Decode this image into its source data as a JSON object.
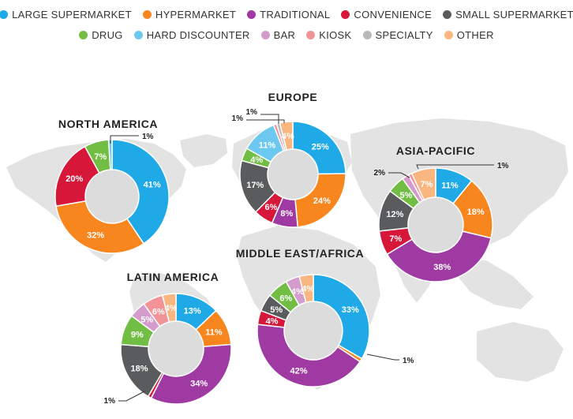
{
  "legend": [
    {
      "label": "LARGE SUPERMARKET",
      "color": "#1fa9e6"
    },
    {
      "label": "HYPERMARKET",
      "color": "#f7861f"
    },
    {
      "label": "TRADITIONAL",
      "color": "#a03aa3"
    },
    {
      "label": "CONVENIENCE",
      "color": "#d7173a"
    },
    {
      "label": "SMALL SUPERMARKET",
      "color": "#5a5b5d"
    },
    {
      "label": "DRUG",
      "color": "#72bd43"
    },
    {
      "label": "HARD DISCOUNTER",
      "color": "#6cc8ef"
    },
    {
      "label": "BAR",
      "color": "#d49ccc"
    },
    {
      "label": "KIOSK",
      "color": "#f29398"
    },
    {
      "label": "SPECIALTY",
      "color": "#b9b9b9"
    },
    {
      "label": "OTHER",
      "color": "#f9b680"
    }
  ],
  "chart_data": [
    {
      "type": "pie",
      "title": "NORTH AMERICA",
      "categories": [
        "LARGE SUPERMARKET",
        "HYPERMARKET",
        "CONVENIENCE",
        "DRUG",
        "HARD DISCOUNTER"
      ],
      "values": [
        41,
        32,
        20,
        7,
        1
      ],
      "labels": [
        "41%",
        "32%",
        "20%",
        "7%",
        "1%"
      ]
    },
    {
      "type": "pie",
      "title": "EUROPE",
      "categories": [
        "LARGE SUPERMARKET",
        "HYPERMARKET",
        "TRADITIONAL",
        "CONVENIENCE",
        "SMALL SUPERMARKET",
        "DRUG",
        "HARD DISCOUNTER",
        "KIOSK",
        "SPECIALTY",
        "OTHER"
      ],
      "values": [
        25,
        24,
        8,
        6,
        17,
        4,
        11,
        1,
        1,
        4
      ],
      "labels": [
        "25%",
        "24%",
        "8%",
        "6%",
        "17%",
        "4%",
        "11%",
        "1%",
        "1%",
        "4%"
      ]
    },
    {
      "type": "pie",
      "title": "ASIA-PACIFIC",
      "categories": [
        "LARGE SUPERMARKET",
        "HYPERMARKET",
        "TRADITIONAL",
        "CONVENIENCE",
        "SMALL SUPERMARKET",
        "DRUG",
        "BAR",
        "KIOSK",
        "OTHER"
      ],
      "values": [
        11,
        18,
        38,
        7,
        12,
        5,
        2,
        1,
        7
      ],
      "labels": [
        "11%",
        "18%",
        "38%",
        "7%",
        "12%",
        "5%",
        "2%",
        "1%",
        "7%"
      ]
    },
    {
      "type": "pie",
      "title": "LATIN AMERICA",
      "categories": [
        "LARGE SUPERMARKET",
        "HYPERMARKET",
        "TRADITIONAL",
        "CONVENIENCE",
        "SMALL SUPERMARKET",
        "DRUG",
        "BAR",
        "KIOSK",
        "OTHER"
      ],
      "values": [
        13,
        11,
        34,
        1,
        18,
        9,
        5,
        6,
        4
      ],
      "labels": [
        "13%",
        "11%",
        "34%",
        "1%",
        "18%",
        "9%",
        "5%",
        "6%",
        "4%"
      ]
    },
    {
      "type": "pie",
      "title": "MIDDLE EAST/AFRICA",
      "categories": [
        "LARGE SUPERMARKET",
        "HYPERMARKET",
        "TRADITIONAL",
        "CONVENIENCE",
        "SMALL SUPERMARKET",
        "DRUG",
        "BAR",
        "OTHER"
      ],
      "values": [
        33,
        1,
        42,
        4,
        5,
        6,
        4,
        4
      ],
      "labels": [
        "33%",
        "1%",
        "42%",
        "4%",
        "5%",
        "6%",
        "4%",
        "4%"
      ]
    }
  ]
}
